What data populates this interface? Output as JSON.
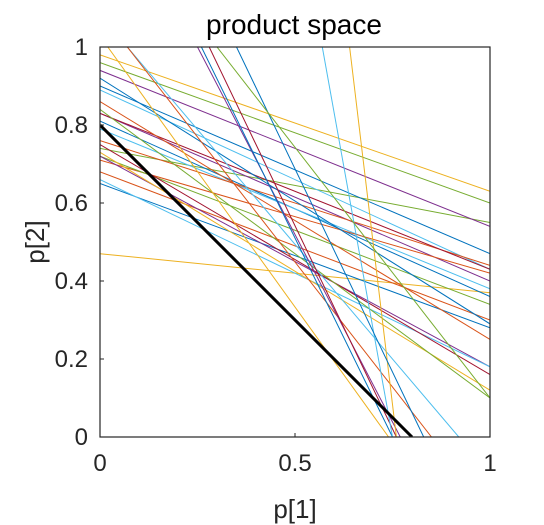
{
  "chart_data": {
    "type": "line",
    "title": "product space",
    "xlabel": "p[1]",
    "ylabel": "p[2]",
    "xlim": [
      0,
      1
    ],
    "ylim": [
      0,
      1
    ],
    "x_ticks": [
      "0",
      "0.5",
      "1"
    ],
    "y_ticks": [
      "0",
      "0.2",
      "0.4",
      "0.6",
      "0.8",
      "1"
    ],
    "grid": false,
    "highlight": {
      "color": "#000000",
      "x": [
        0,
        0.8
      ],
      "y": [
        0.8,
        0
      ]
    },
    "series": [
      {
        "color": "#EDB120",
        "x": [
          0,
          1
        ],
        "y": [
          0.98,
          0.63
        ]
      },
      {
        "color": "#EDB120",
        "x": [
          0,
          1
        ],
        "y": [
          0.47,
          0.37
        ]
      },
      {
        "color": "#77AC30",
        "x": [
          0,
          1
        ],
        "y": [
          0.96,
          0.6
        ]
      },
      {
        "color": "#77AC30",
        "x": [
          0,
          1
        ],
        "y": [
          0.74,
          0.55
        ]
      },
      {
        "color": "#7E2F8E",
        "x": [
          0,
          1
        ],
        "y": [
          0.94,
          0.54
        ]
      },
      {
        "color": "#7E2F8E",
        "x": [
          0,
          1
        ],
        "y": [
          0.83,
          0.4
        ]
      },
      {
        "color": "#0072BD",
        "x": [
          0,
          1
        ],
        "y": [
          0.9,
          0.47
        ]
      },
      {
        "color": "#0072BD",
        "x": [
          0,
          1
        ],
        "y": [
          0.81,
          0.36
        ]
      },
      {
        "color": "#4DBEEE",
        "x": [
          0,
          1
        ],
        "y": [
          0.89,
          0.43
        ]
      },
      {
        "color": "#4DBEEE",
        "x": [
          0,
          1
        ],
        "y": [
          0.79,
          0.38
        ]
      },
      {
        "color": "#D95319",
        "x": [
          0,
          1
        ],
        "y": [
          0.76,
          0.44
        ]
      },
      {
        "color": "#D95319",
        "x": [
          0,
          1
        ],
        "y": [
          0.71,
          0.42
        ]
      },
      {
        "color": "#A2142F",
        "x": [
          0,
          1
        ],
        "y": [
          0.83,
          0.43
        ]
      },
      {
        "color": "#77AC30",
        "x": [
          0,
          1
        ],
        "y": [
          0.72,
          0.34
        ]
      },
      {
        "color": "#D95319",
        "x": [
          0,
          1
        ],
        "y": [
          0.68,
          0.3
        ]
      },
      {
        "color": "#0072BD",
        "x": [
          0,
          1
        ],
        "y": [
          0.65,
          0.28
        ]
      },
      {
        "color": "#7E2F8E",
        "x": [
          0,
          1
        ],
        "y": [
          0.72,
          0.18
        ]
      },
      {
        "color": "#4DBEEE",
        "x": [
          0,
          1
        ],
        "y": [
          0.66,
          0.18
        ]
      },
      {
        "color": "#EDB120",
        "x": [
          0,
          1
        ],
        "y": [
          0.73,
          0.12
        ]
      },
      {
        "color": "#A2142F",
        "x": [
          0,
          1
        ],
        "y": [
          0.75,
          0.16
        ]
      },
      {
        "color": "#77AC30",
        "x": [
          0,
          1
        ],
        "y": [
          0.84,
          0.1
        ]
      },
      {
        "color": "#D95319",
        "x": [
          0,
          1
        ],
        "y": [
          0.86,
          0.25
        ]
      },
      {
        "color": "#0072BD",
        "x": [
          0,
          1
        ],
        "y": [
          0.92,
          0.29
        ]
      },
      {
        "color": "#EDB120",
        "x": [
          0.02,
          0.74
        ],
        "y": [
          1,
          0
        ]
      },
      {
        "color": "#4DBEEE",
        "x": [
          0.07,
          0.92
        ],
        "y": [
          1,
          0
        ]
      },
      {
        "color": "#D95319",
        "x": [
          0.07,
          0.85
        ],
        "y": [
          1,
          0
        ]
      },
      {
        "color": "#7E2F8E",
        "x": [
          0.25,
          0.77
        ],
        "y": [
          1,
          0
        ]
      },
      {
        "color": "#A2142F",
        "x": [
          0.28,
          0.76
        ],
        "y": [
          1,
          0
        ]
      },
      {
        "color": "#0072BD",
        "x": [
          0.26,
          0.75
        ],
        "y": [
          1,
          0
        ]
      },
      {
        "color": "#4DBEEE",
        "x": [
          0.57,
          0.75
        ],
        "y": [
          1,
          0
        ]
      },
      {
        "color": "#EDB120",
        "x": [
          0.64,
          0.76
        ],
        "y": [
          1,
          0
        ]
      },
      {
        "color": "#0072BD",
        "x": [
          0.35,
          0.83
        ],
        "y": [
          1,
          0
        ]
      },
      {
        "color": "#77AC30",
        "x": [
          0.3,
          1
        ],
        "y": [
          1,
          0.1
        ]
      }
    ]
  }
}
